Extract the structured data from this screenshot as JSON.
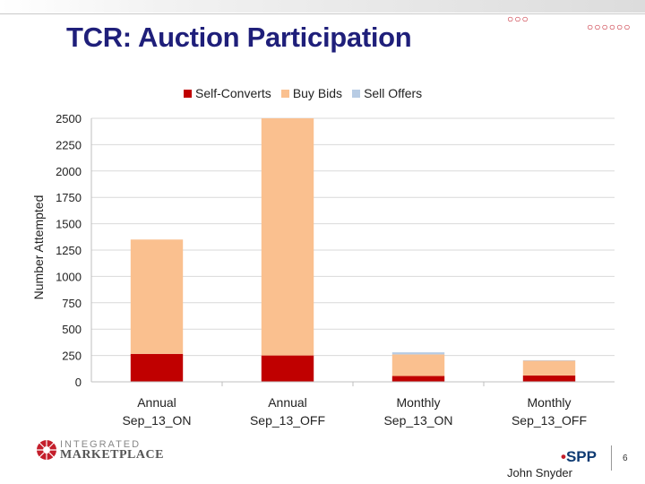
{
  "title": "TCR: Auction Participation",
  "presenter": "John Snyder",
  "page_number": "6",
  "logos": {
    "left_top": "INTEGRATED",
    "left_bottom": "MARKETPLACE",
    "right": "SPP"
  },
  "colors": {
    "title": "#1f1f7a",
    "accent_red": "#c41e2b",
    "self_converts": "#c00000",
    "buy_bids": "#fac08f",
    "sell_offers": "#b8cce4"
  },
  "chart_data": {
    "type": "bar",
    "stacked": true,
    "title": "",
    "xlabel": "",
    "ylabel": "Number Attempted",
    "ylim": [
      0,
      2500
    ],
    "yticks": [
      0,
      250,
      500,
      750,
      1000,
      1250,
      1500,
      1750,
      2000,
      2250,
      2500
    ],
    "grid": true,
    "legend_position": "top-center",
    "categories": [
      [
        "Annual",
        "Sep_13_ON"
      ],
      [
        "Annual",
        "Sep_13_OFF"
      ],
      [
        "Monthly",
        "Sep_13_ON"
      ],
      [
        "Monthly",
        "Sep_13_OFF"
      ]
    ],
    "series": [
      {
        "name": "Self-Converts",
        "color": "#c00000",
        "values": [
          265,
          250,
          55,
          60
        ]
      },
      {
        "name": "Buy Bids",
        "color": "#fac08f",
        "values": [
          1085,
          2250,
          205,
          140
        ]
      },
      {
        "name": "Sell Offers",
        "color": "#b8cce4",
        "values": [
          0,
          0,
          20,
          5
        ]
      }
    ]
  }
}
